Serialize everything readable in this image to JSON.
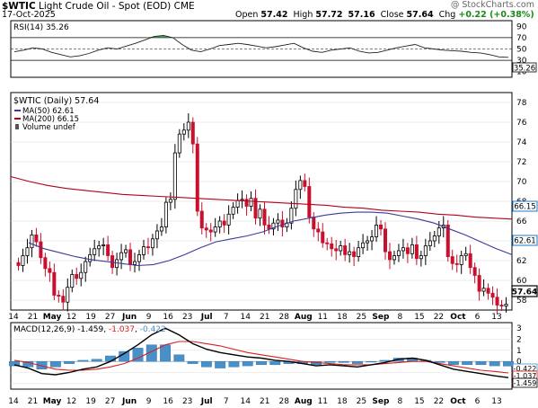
{
  "header": {
    "symbol": "$WTIC",
    "name": "Light Crude Oil - Spot (EOD)",
    "exchange": "CME",
    "date": "17-Oct-2025",
    "open_label": "Open",
    "open": "57.42",
    "high_label": "High",
    "high": "57.72",
    "low": "57.16",
    "close_label": "Close",
    "close": "57.64",
    "chg_label": "Chg",
    "chg": "+0.22 (+0.38%)",
    "watermark": "@ StockCharts.com"
  },
  "rsi_panel": {
    "label": "RSI(14) 35.26",
    "value": "35.26",
    "ticks": [
      "90",
      "70",
      "50",
      "30",
      "10"
    ]
  },
  "price_panel": {
    "title": "$WTIC (Daily) 57.64",
    "legend": [
      {
        "label": "MA(50) 62.61",
        "color": "#3b3b9a"
      },
      {
        "label": "MA(200) 66.15",
        "color": "#b3001b"
      },
      {
        "label": "Volume undef",
        "color": "#555555"
      }
    ],
    "ma50_value": "62.61",
    "ma200_value": "66.15",
    "close_value": "57.64",
    "ticks": [
      "78",
      "76",
      "74",
      "72",
      "70",
      "68",
      "66",
      "64",
      "62",
      "60",
      "58"
    ]
  },
  "macd_panel": {
    "label": "MACD(12,26,9)",
    "macd": "-1.459",
    "signal": "-1.037",
    "hist": "-0.422",
    "ticks": [
      "3",
      "2",
      "1",
      "0",
      "-1",
      "-2"
    ],
    "value_tags": [
      "-0.422",
      "-1.037",
      "-1.459"
    ]
  },
  "x_axis": {
    "labels": [
      "14",
      "21",
      "May",
      "12",
      "19",
      "27",
      "Jun",
      "9",
      "16",
      "23",
      "Jul",
      "7",
      "14",
      "21",
      "28",
      "Aug",
      "11",
      "18",
      "25",
      "Sep",
      "8",
      "15",
      "22",
      "Oct",
      "6",
      "13"
    ]
  },
  "colors": {
    "up": "#000000",
    "down": "#c8102e",
    "ma50": "#3b3b9a",
    "ma200": "#b3001b",
    "macd": "#000000",
    "signal": "#d62020",
    "hist": "#4a90c8"
  },
  "chart_data": {
    "type": "candlestick",
    "x_axis_labels": [
      "14",
      "21",
      "May",
      "12",
      "19",
      "27",
      "Jun",
      "9",
      "16",
      "23",
      "Jul",
      "7",
      "14",
      "21",
      "28",
      "Aug",
      "11",
      "18",
      "25",
      "Sep",
      "8",
      "15",
      "22",
      "Oct",
      "6",
      "13"
    ],
    "close": [
      61.5,
      62.5,
      63.3,
      64.6,
      63.9,
      62.3,
      61.2,
      60.8,
      58.5,
      58.4,
      57.8,
      59.3,
      60.6,
      60.2,
      60.8,
      61.9,
      62.6,
      63.2,
      63.5,
      63.6,
      62.5,
      61.3,
      62.1,
      62.8,
      63.1,
      61.6,
      61.9,
      62.6,
      63.4,
      63.3,
      64.2,
      65.0,
      65.4,
      67.9,
      68.2,
      72.9,
      74.8,
      75.2,
      76.0,
      73.8,
      67.0,
      65.3,
      65.1,
      64.9,
      65.4,
      66.0,
      65.6,
      66.7,
      67.4,
      68.1,
      68.2,
      67.5,
      68.3,
      66.3,
      67.2,
      65.6,
      65.2,
      65.8,
      66.1,
      65.4,
      65.8,
      67.3,
      69.2,
      70.1,
      69.5,
      66.4,
      65.2,
      64.9,
      63.8,
      63.7,
      63.2,
      63.0,
      63.5,
      62.6,
      62.9,
      62.4,
      63.3,
      63.8,
      64.0,
      64.4,
      65.6,
      65.2,
      62.9,
      62.1,
      62.5,
      63.0,
      63.3,
      62.7,
      63.6,
      62.2,
      62.5,
      63.5,
      64.0,
      64.5,
      65.3,
      65.6,
      62.4,
      61.7,
      61.6,
      62.5,
      62.7,
      61.3,
      60.5,
      58.9,
      59.2,
      58.7,
      58.3,
      57.5,
      57.4,
      57.6
    ],
    "ma50": [
      63.8,
      63.2,
      62.8,
      62.4,
      62.1,
      61.9,
      61.7,
      61.5,
      61.6,
      62.0,
      62.6,
      63.3,
      63.9,
      64.2,
      64.5,
      64.9,
      65.5,
      66.0,
      66.3,
      66.6,
      66.8,
      66.9,
      66.9,
      66.8,
      66.5,
      66.2,
      65.8,
      65.2,
      64.6,
      63.9,
      63.2,
      62.6
    ],
    "ma200": [
      70.5,
      70.0,
      69.6,
      69.3,
      69.1,
      68.9,
      68.7,
      68.6,
      68.5,
      68.4,
      68.3,
      68.2,
      68.1,
      68.0,
      67.9,
      67.8,
      67.7,
      67.6,
      67.4,
      67.3,
      67.1,
      67.0,
      66.9,
      66.7,
      66.6,
      66.4,
      66.3,
      66.2
    ],
    "rsi": [
      45,
      48,
      52,
      50,
      44,
      40,
      36,
      38,
      42,
      48,
      52,
      50,
      55,
      60,
      66,
      72,
      74,
      70,
      58,
      48,
      45,
      50,
      56,
      58,
      60,
      58,
      55,
      52,
      54,
      57,
      60,
      52,
      46,
      44,
      48,
      50,
      52,
      46,
      43,
      44,
      48,
      52,
      55,
      58,
      52,
      50,
      48,
      47,
      46,
      44,
      43,
      40,
      36,
      35.26
    ],
    "macd": [
      -0.3,
      -0.6,
      -1.1,
      -1.2,
      -1.0,
      -0.7,
      -0.5,
      0.0,
      0.7,
      1.5,
      2.4,
      3.0,
      2.4,
      1.6,
      1.1,
      0.8,
      0.6,
      0.4,
      0.3,
      0.1,
      0.0,
      -0.2,
      -0.4,
      -0.3,
      -0.4,
      -0.5,
      -0.3,
      -0.1,
      0.2,
      0.3,
      0.1,
      -0.3,
      -0.7,
      -0.9,
      -1.1,
      -1.3,
      -1.459
    ],
    "signal": [
      0.1,
      -0.1,
      -0.4,
      -0.7,
      -0.8,
      -0.8,
      -0.7,
      -0.5,
      -0.2,
      0.3,
      0.9,
      1.5,
      1.8,
      1.8,
      1.6,
      1.4,
      1.1,
      0.8,
      0.6,
      0.4,
      0.2,
      0.0,
      -0.1,
      -0.2,
      -0.3,
      -0.3,
      -0.3,
      -0.2,
      -0.1,
      0.0,
      0.0,
      -0.2,
      -0.4,
      -0.6,
      -0.8,
      -0.9,
      -1.037
    ],
    "histogram": [
      -0.4,
      -0.5,
      -0.7,
      -0.5,
      -0.2,
      0.1,
      0.2,
      0.5,
      0.9,
      1.2,
      1.5,
      1.5,
      0.6,
      -0.2,
      -0.5,
      -0.6,
      -0.5,
      -0.4,
      -0.3,
      -0.3,
      -0.2,
      -0.2,
      -0.3,
      -0.1,
      -0.1,
      -0.2,
      0.0,
      0.1,
      0.3,
      0.3,
      0.1,
      -0.1,
      -0.3,
      -0.3,
      -0.3,
      -0.4,
      -0.422
    ],
    "ylim_price": [
      57,
      79
    ],
    "ylim_rsi": [
      0,
      100
    ],
    "ylim_macd": [
      -2.5,
      3.5
    ]
  }
}
